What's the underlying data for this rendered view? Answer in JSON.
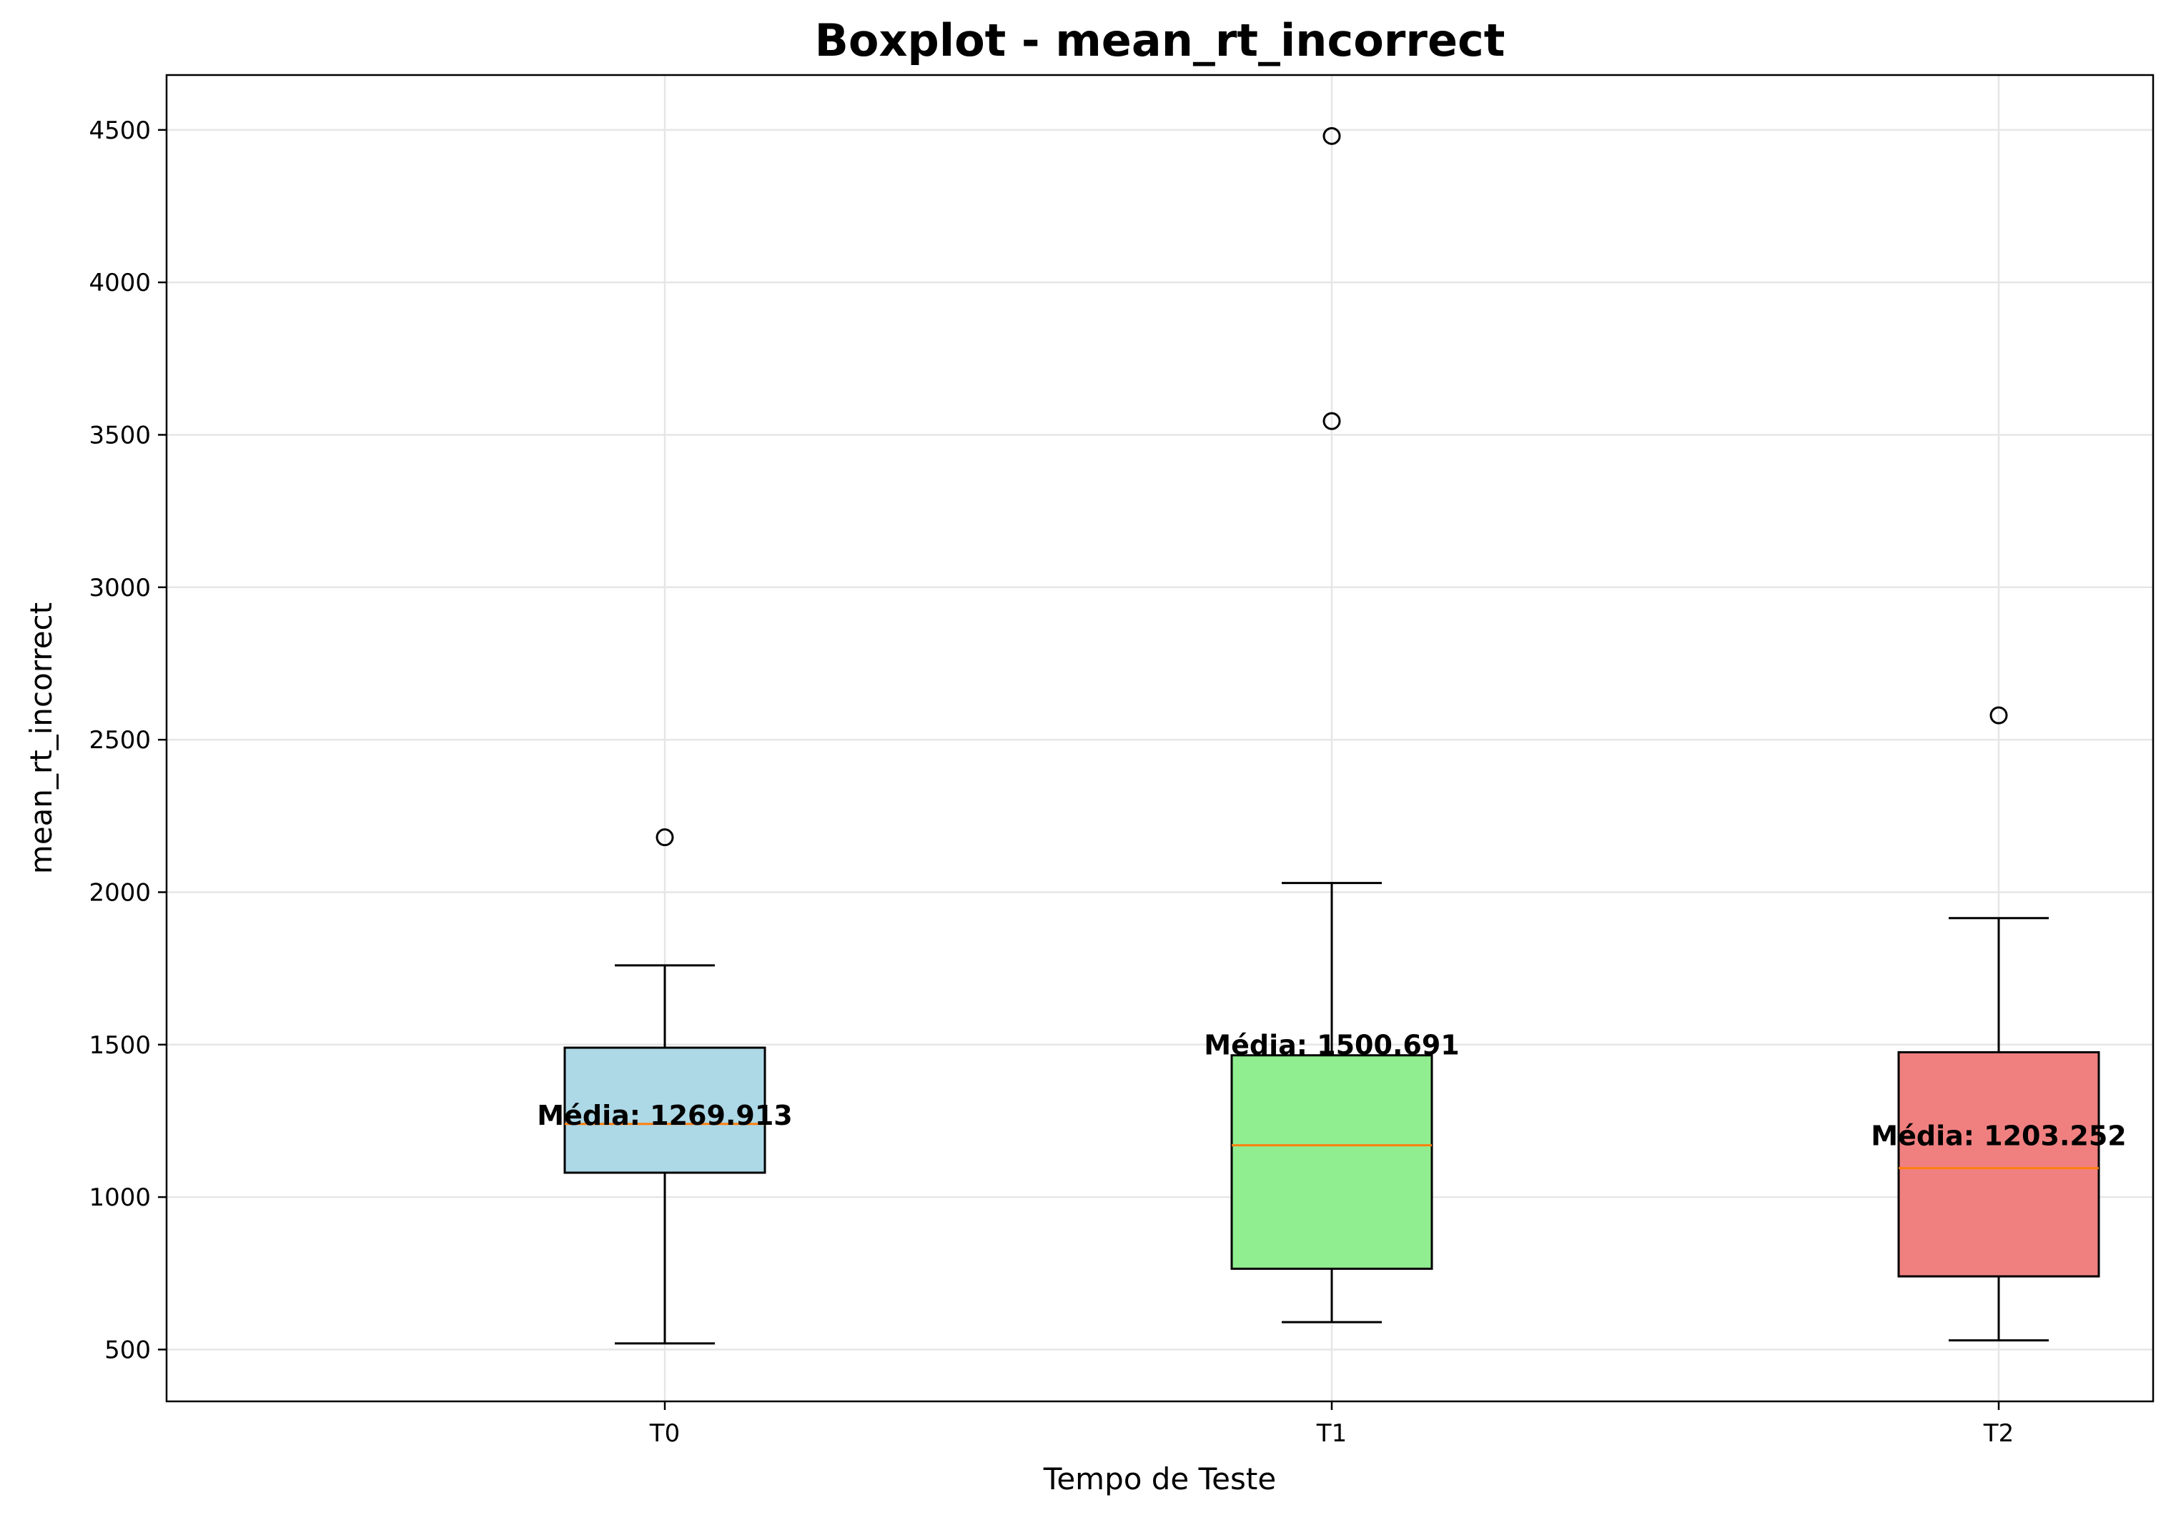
{
  "chart_data": {
    "type": "boxplot",
    "title": "Boxplot - mean_rt_incorrect",
    "xlabel": "Tempo de Teste",
    "ylabel": "mean_rt_incorrect",
    "ylim": [
      330,
      4680
    ],
    "yticks": [
      500,
      1000,
      1500,
      2000,
      2500,
      3000,
      3500,
      4000,
      4500
    ],
    "grid": true,
    "categories": [
      "T0",
      "T1",
      "T2"
    ],
    "boxes": [
      {
        "category": "T0",
        "whisker_low": 520,
        "q1": 1080,
        "median": 1240,
        "q3": 1490,
        "whisker_high": 1760,
        "outliers": [
          2180
        ],
        "mean_label": "Média: 1269.913",
        "color": "#add8e6"
      },
      {
        "category": "T1",
        "whisker_low": 590,
        "q1": 765,
        "median": 1170,
        "q3": 1465,
        "whisker_high": 2030,
        "outliers": [
          3545,
          4480
        ],
        "mean_label": "Média: 1500.691",
        "color": "#90ee90"
      },
      {
        "category": "T2",
        "whisker_low": 530,
        "q1": 740,
        "median": 1095,
        "q3": 1475,
        "whisker_high": 1915,
        "outliers": [
          2580
        ],
        "mean_label": "Média: 1203.252",
        "color": "#f08080"
      }
    ],
    "median_color": "#ff7f0e",
    "mean_label_values": [
      1269.913,
      1500.691,
      1203.252
    ]
  }
}
